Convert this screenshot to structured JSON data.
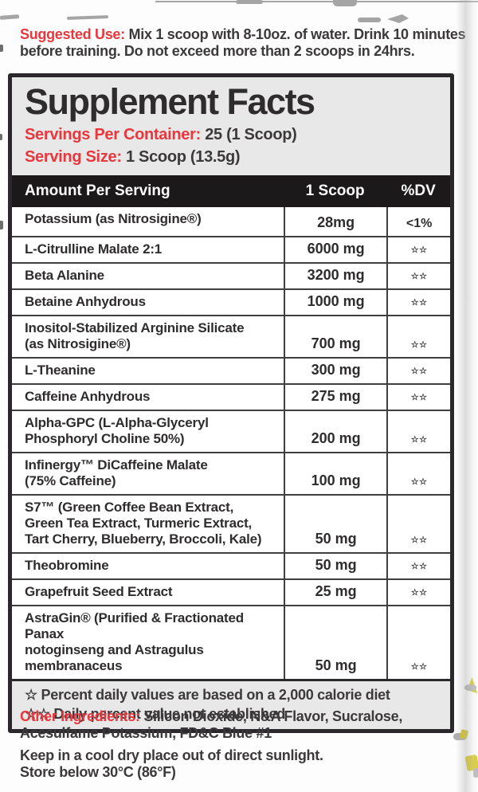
{
  "colors": {
    "accent_red": "#e8373d",
    "panel_border": "#2a282a",
    "bar_bg": "#1b191a",
    "panel_bg": "#e9e8e8",
    "text_dark": "#3b393a"
  },
  "suggested_use": {
    "label": "Suggested Use:",
    "text": "Mix 1 scoop with 8-10oz. of water. Drink 10 minutes\nbefore training. Do not exceed more than 2 scoops in 24hrs."
  },
  "panel": {
    "title": "Supplement Facts",
    "servings_per_container": {
      "label": "Servings Per Container:",
      "value": "25 (1 Scoop)"
    },
    "serving_size": {
      "label": "Serving Size:",
      "value": "1 Scoop (13.5g)"
    },
    "table": {
      "headers": {
        "amount_per_serving": "Amount Per Serving",
        "scoop": "1 Scoop",
        "dv": "%DV"
      },
      "rows": [
        {
          "name": "Potassium (as Nitrosigine®)",
          "amount": "28mg",
          "dv": "<1%"
        },
        {
          "name": "L-Citrulline Malate 2:1",
          "amount": "6000 mg",
          "dv": "☆☆"
        },
        {
          "name": "Beta Alanine",
          "amount": "3200 mg",
          "dv": "☆☆"
        },
        {
          "name": "Betaine Anhydrous",
          "amount": "1000 mg",
          "dv": "☆☆"
        },
        {
          "name": "Inositol-Stabilized Arginine Silicate\n(as Nitrosigine®)",
          "amount": "700 mg",
          "dv": "☆☆"
        },
        {
          "name": "L-Theanine",
          "amount": "300 mg",
          "dv": "☆☆"
        },
        {
          "name": "Caffeine Anhydrous",
          "amount": "275 mg",
          "dv": "☆☆"
        },
        {
          "name": "Alpha-GPC (L-Alpha-Glyceryl\nPhosphoryl Choline 50%)",
          "amount": "200 mg",
          "dv": "☆☆"
        },
        {
          "name": "Infinergy™ DiCaffeine Malate\n(75% Caffeine)",
          "amount": "100 mg",
          "dv": "☆☆"
        },
        {
          "name": "S7™ (Green Coffee Bean Extract,\nGreen Tea Extract, Turmeric Extract,\nTart Cherry, Blueberry, Broccoli, Kale)",
          "amount": "50 mg",
          "dv": "☆☆"
        },
        {
          "name": "Theobromine",
          "amount": "50 mg",
          "dv": "☆☆"
        },
        {
          "name": "Grapefruit Seed Extract",
          "amount": "25 mg",
          "dv": "☆☆"
        },
        {
          "name": "AstraGin® (Purified & Fractionated Panax\nnotoginseng and Astragulus membranaceus",
          "amount": "50 mg",
          "dv": "☆☆"
        }
      ],
      "footnotes": [
        "☆ Percent daily values are based on a 2,000 calorie diet",
        "☆☆ Daily percent value not established"
      ]
    }
  },
  "other_ingredients": {
    "label": "Other Ingredients:",
    "text": "Silicon Dioxide, N&A Flavor, Sucralose,\nAcesulfame Potassium, FD&C Blue #1"
  },
  "storage": {
    "text": "Keep in a cool dry place out of direct sunlight.\nStore below 30°C (86°F)"
  }
}
